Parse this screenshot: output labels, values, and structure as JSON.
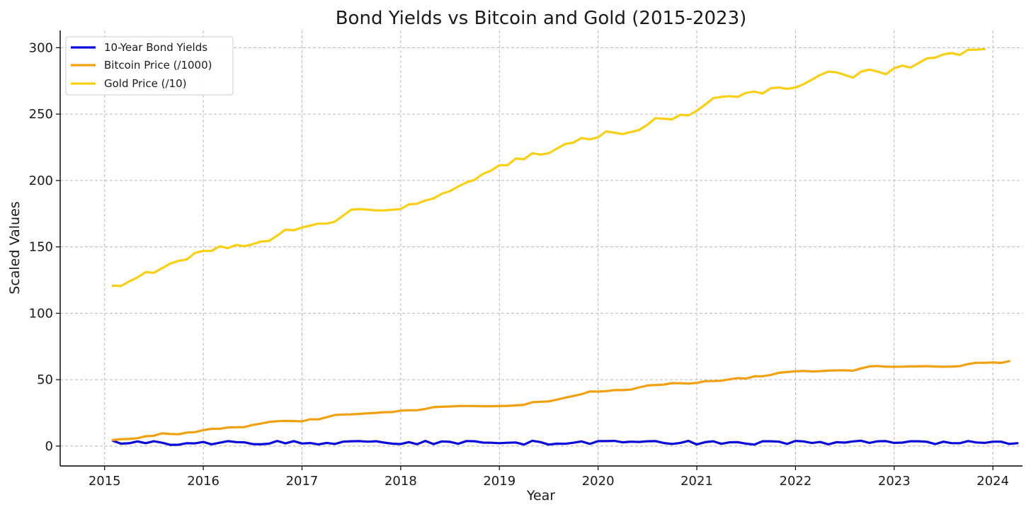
{
  "chart_data": {
    "type": "line",
    "title": "Bond Yields vs Bitcoin and Gold (2015-2023)",
    "xlabel": "Year",
    "ylabel": "Scaled Values",
    "xlim": [
      2014.55,
      2024.3
    ],
    "ylim": [
      -15,
      313
    ],
    "xticks": [
      2015,
      2016,
      2017,
      2018,
      2019,
      2020,
      2021,
      2022,
      2023,
      2024
    ],
    "xtick_labels": [
      "2015",
      "2016",
      "2017",
      "2018",
      "2019",
      "2020",
      "2021",
      "2022",
      "2023",
      "2024"
    ],
    "yticks": [
      0,
      50,
      100,
      150,
      200,
      250,
      300
    ],
    "ytick_labels": [
      "0",
      "50",
      "100",
      "150",
      "200",
      "250",
      "300"
    ],
    "grid": true,
    "legend_position": "top-left",
    "x_start": 2015.083,
    "x_step": 0.08333,
    "series": [
      {
        "name": "10-Year Bond Yields",
        "color": "#0a0ad8",
        "values": [
          4.0,
          1.8,
          2.1,
          3.5,
          2.2,
          3.6,
          2.5,
          0.9,
          1.0,
          2.2,
          2.0,
          3.1,
          1.3,
          2.5,
          3.7,
          3.0,
          2.8,
          1.5,
          1.3,
          1.8,
          3.9,
          2.0,
          3.7,
          1.9,
          2.3,
          1.2,
          2.4,
          1.6,
          3.3,
          3.6,
          3.7,
          3.3,
          3.6,
          2.6,
          1.8,
          1.5,
          3.0,
          1.4,
          3.9,
          1.5,
          3.5,
          3.2,
          1.7,
          3.8,
          3.6,
          2.6,
          2.5,
          2.2,
          2.5,
          2.7,
          1.1,
          4.0,
          3.0,
          1.1,
          1.8,
          1.7,
          2.5,
          3.5,
          1.6,
          3.7,
          3.7,
          3.9,
          2.8,
          3.3,
          3.1,
          3.6,
          3.7,
          2.3,
          1.6,
          2.4,
          3.9,
          1.2,
          2.9,
          3.6,
          1.7,
          2.8,
          2.9,
          1.8,
          1.1,
          3.6,
          3.6,
          3.3,
          1.6,
          3.9,
          3.5,
          2.3,
          3.1,
          1.3,
          2.9,
          2.6,
          3.5,
          4.0,
          2.4,
          3.6,
          3.7,
          2.4,
          2.6,
          3.6,
          3.6,
          3.2,
          1.5,
          3.3,
          2.2,
          2.2,
          3.8,
          2.7,
          2.4,
          3.3,
          3.3,
          1.6,
          2.2
        ]
      },
      {
        "name": "Bitcoin Price (/1000)",
        "color": "#f0a010",
        "values": [
          4.5,
          5.2,
          5.3,
          5.9,
          7.4,
          7.8,
          9.6,
          9.1,
          8.9,
          10.2,
          10.5,
          12.0,
          13.0,
          13.0,
          14.0,
          14.2,
          14.3,
          15.9,
          16.9,
          18.2,
          18.7,
          19.0,
          18.8,
          18.6,
          20.2,
          20.1,
          21.7,
          23.4,
          23.8,
          23.9,
          24.2,
          24.7,
          25.0,
          25.5,
          25.6,
          26.7,
          27.0,
          27.0,
          28.0,
          29.3,
          29.6,
          29.8,
          30.1,
          30.2,
          30.1,
          30.0,
          30.0,
          30.1,
          30.3,
          30.6,
          31.1,
          33.0,
          33.4,
          33.6,
          35.0,
          36.4,
          37.7,
          39.1,
          41.1,
          41.0,
          41.4,
          42.1,
          42.1,
          42.5,
          44.2,
          45.6,
          46.0,
          46.3,
          47.4,
          47.3,
          47.1,
          47.5,
          48.9,
          48.9,
          49.2,
          50.3,
          51.2,
          50.8,
          52.5,
          52.6,
          53.6,
          55.2,
          55.7,
          56.3,
          56.5,
          56.2,
          56.4,
          56.8,
          57.0,
          57.0,
          56.8,
          58.5,
          60.0,
          60.3,
          59.7,
          59.7,
          59.8,
          60.0,
          60.0,
          60.2,
          59.9,
          59.7,
          59.9,
          60.2,
          61.8,
          62.7,
          62.7,
          63.0,
          62.6,
          64.0
        ]
      },
      {
        "name": "Gold Price (/10)",
        "color": "#f7cf15",
        "values": [
          120.8,
          120.5,
          124.0,
          127.0,
          131.0,
          130.5,
          134.0,
          137.5,
          139.5,
          140.5,
          145.5,
          147.0,
          147.0,
          150.5,
          149.0,
          151.5,
          150.5,
          152.0,
          154.0,
          154.5,
          158.5,
          163.0,
          162.5,
          164.5,
          166.0,
          167.5,
          167.5,
          169.0,
          173.5,
          178.0,
          178.5,
          178.0,
          177.5,
          177.5,
          178.0,
          178.5,
          182.0,
          182.5,
          185.0,
          186.5,
          190.0,
          192.0,
          195.5,
          198.5,
          200.5,
          205.0,
          207.5,
          211.5,
          211.5,
          216.5,
          216.0,
          220.5,
          219.5,
          220.5,
          224.0,
          227.5,
          228.5,
          232.0,
          231.0,
          232.5,
          237.0,
          236.0,
          235.0,
          236.5,
          238.0,
          242.0,
          247.0,
          246.5,
          246.0,
          249.5,
          249.0,
          252.5,
          257.0,
          262.0,
          263.0,
          263.5,
          263.0,
          266.0,
          267.0,
          265.5,
          269.5,
          270.0,
          269.0,
          270.0,
          272.5,
          276.0,
          279.5,
          282.0,
          281.5,
          279.5,
          277.5,
          282.0,
          283.5,
          282.0,
          280.0,
          284.5,
          286.5,
          285.0,
          288.5,
          292.0,
          292.5,
          295.0,
          296.0,
          294.5,
          298.5,
          298.5,
          299.0
        ]
      }
    ]
  }
}
